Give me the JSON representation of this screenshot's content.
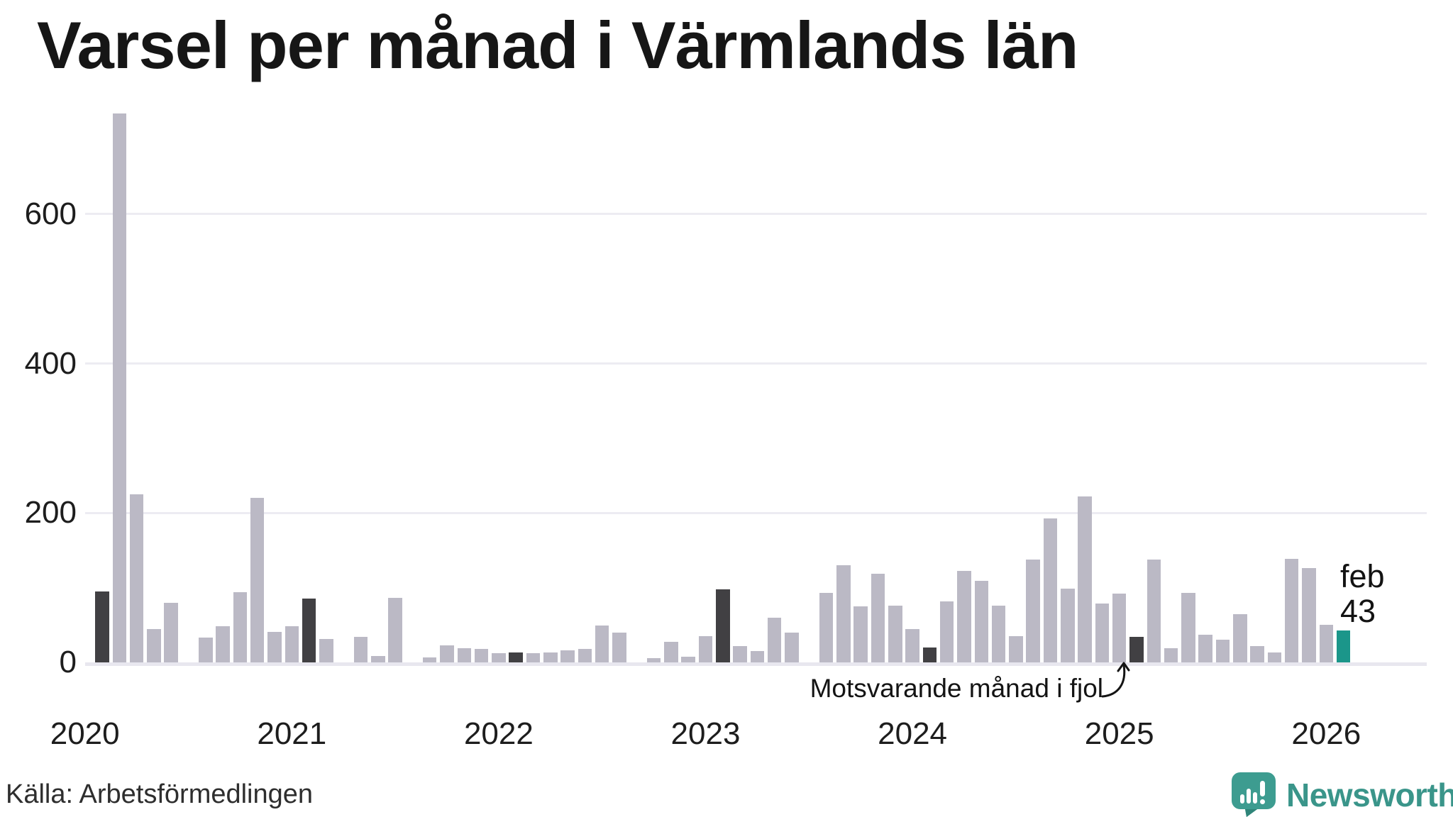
{
  "title": "Varsel per månad i Värmlands län",
  "source": "Källa: Arbetsförmedlingen",
  "logo": {
    "text": "Newsworthy"
  },
  "annotation": {
    "text": "Motsvarande månad i fjol",
    "points_to": "2025-02"
  },
  "current_label": {
    "line1": "feb",
    "line2": "43"
  },
  "colors": {
    "bar": "#bbb9c5",
    "bar_dark": "#414043",
    "bar_highlight": "#1b968a",
    "grid": "#edecf2",
    "axis_line": "#e8e7ef",
    "logo_teal": "#3a958a",
    "logo_icon": "#3d9c90",
    "logo_icon_dark": "#2f8579",
    "text": "#161616"
  },
  "chart_data": {
    "type": "bar",
    "title": "Varsel per månad i Värmlands län",
    "x_start": "2020-02",
    "x_step_months": 1,
    "x_end": "2026-02",
    "values": [
      95,
      735,
      225,
      45,
      80,
      0,
      33,
      48,
      94,
      220,
      41,
      48,
      85,
      31,
      0,
      34,
      9,
      86,
      0,
      7,
      23,
      19,
      18,
      12,
      13,
      12,
      13,
      16,
      18,
      49,
      40,
      0,
      6,
      28,
      8,
      35,
      98,
      22,
      15,
      60,
      40,
      0,
      93,
      130,
      75,
      119,
      76,
      45,
      20,
      82,
      122,
      109,
      76,
      35,
      138,
      193,
      99,
      222,
      79,
      92,
      34,
      138,
      19,
      93,
      37,
      30,
      65,
      22,
      13,
      139,
      126,
      50,
      43
    ],
    "dark_indices": [
      0,
      12,
      24,
      36,
      48,
      60
    ],
    "dark_meaning": "februari varje år (motsvarande månad)",
    "teal_index": 72,
    "teal_label": "feb 43",
    "yticks": [
      0,
      200,
      400,
      600
    ],
    "ylim": [
      0,
      740
    ],
    "year_labels": [
      "2020",
      "2021",
      "2022",
      "2023",
      "2024",
      "2025",
      "2026"
    ],
    "grid": "horizontal-only",
    "legend": "none"
  }
}
